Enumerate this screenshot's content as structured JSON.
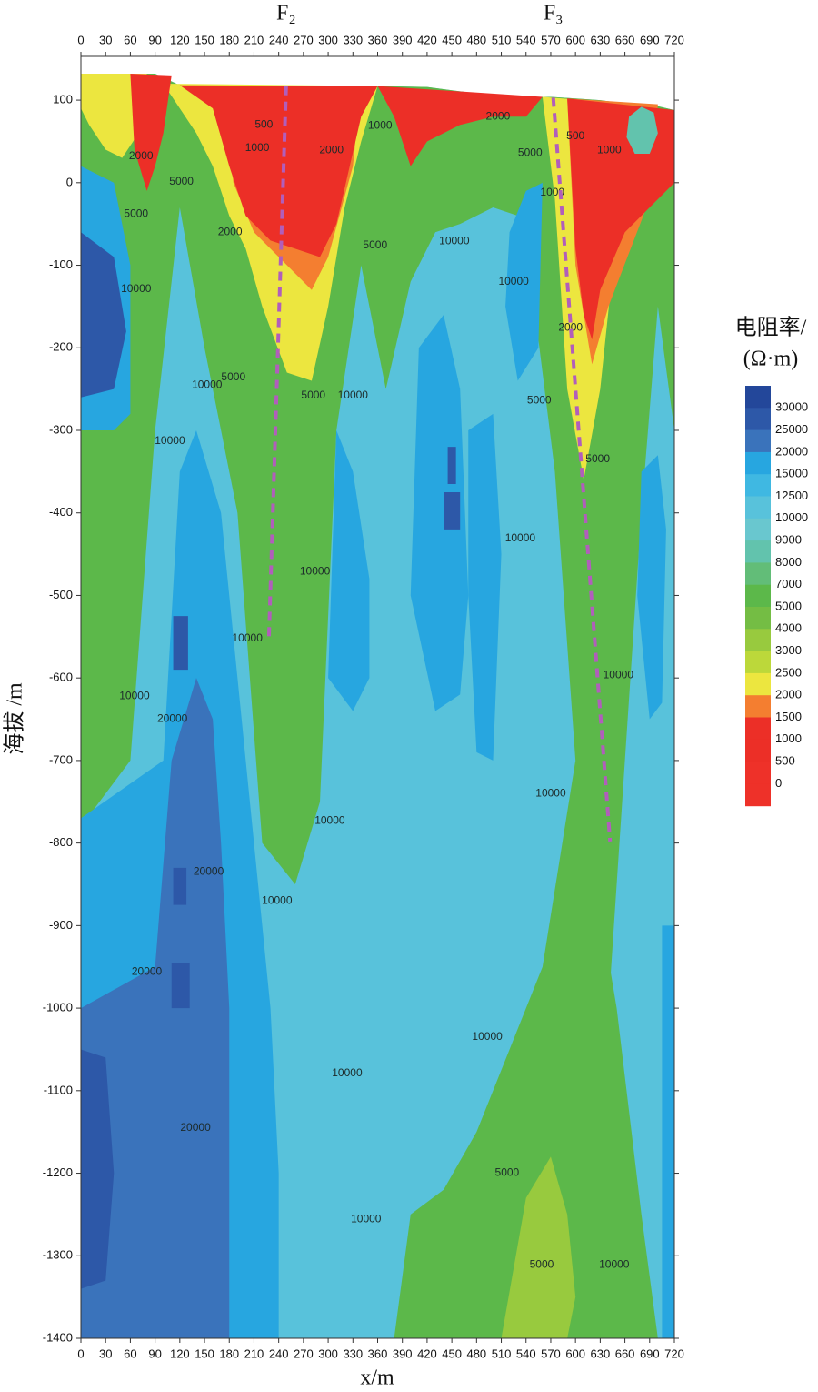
{
  "chart_data": {
    "type": "contour",
    "xlabel": "x/m",
    "ylabel": "海拔 /m",
    "xlim": [
      0,
      720
    ],
    "ylim": [
      -1400,
      153
    ],
    "xticks": [
      0,
      30,
      60,
      90,
      120,
      150,
      180,
      210,
      240,
      270,
      300,
      330,
      360,
      390,
      420,
      450,
      480,
      510,
      540,
      570,
      600,
      630,
      660,
      690,
      720
    ],
    "yticks": [
      100,
      0,
      -100,
      -200,
      -300,
      -400,
      -500,
      -600,
      -700,
      -800,
      -900,
      -1000,
      -1100,
      -1200,
      -1300,
      -1400
    ],
    "colorbar": {
      "title": [
        "电阻率/",
        "(Ω·m)"
      ],
      "levels": [
        30000,
        25000,
        20000,
        15000,
        12500,
        10000,
        9000,
        8000,
        7000,
        5000,
        4000,
        3000,
        2500,
        2000,
        1500,
        1000,
        500,
        0
      ],
      "colors": [
        "#23479a",
        "#2d58a8",
        "#3a73bb",
        "#27a6e0",
        "#3fb8e2",
        "#58c2db",
        "#69c7cf",
        "#62c3ad",
        "#62bd78",
        "#5cb84a",
        "#74bd44",
        "#98ca3e",
        "#bcd83a",
        "#ece63f",
        "#f47e30",
        "#ec2f27",
        "#ec2f27",
        "#ee3129",
        "#ee3129"
      ]
    },
    "regions": [
      {
        "level": 10000,
        "x": [
          0,
          90,
          120,
          180,
          240,
          300,
          360,
          420,
          450,
          480,
          510,
          540,
          570,
          600,
          630,
          660,
          690,
          720,
          720,
          0
        ],
        "y": [
          132,
          132,
          118,
          115,
          115,
          115,
          117,
          116,
          112,
          108,
          104,
          104,
          104,
          102,
          100,
          96,
          95,
          88,
          -1400,
          -1400
        ]
      },
      {
        "level": 5000,
        "x": [
          0,
          90,
          120,
          180,
          240,
          300,
          360,
          420,
          450,
          480,
          510,
          540,
          570,
          600,
          630,
          660,
          690,
          720,
          720,
          700,
          680,
          640,
          620,
          600,
          575,
          550,
          530,
          500,
          460,
          430,
          400,
          370,
          340,
          310,
          290,
          260,
          220,
          190,
          150,
          120,
          90,
          60,
          0
        ],
        "y": [
          132,
          132,
          118,
          115,
          115,
          115,
          117,
          116,
          112,
          108,
          104,
          104,
          104,
          102,
          100,
          96,
          95,
          88,
          -300,
          -150,
          -400,
          -1000,
          -900,
          -700,
          -350,
          -150,
          -40,
          -30,
          -50,
          -60,
          -120,
          -250,
          -100,
          -300,
          -750,
          -850,
          -800,
          -400,
          -200,
          -30,
          -300,
          -700,
          -780
        ]
      },
      {
        "level": 5000,
        "x": [
          380,
          400,
          440,
          480,
          520,
          560,
          600,
          650,
          680,
          700
        ],
        "y": [
          -1400,
          -1250,
          -1220,
          -1150,
          -1050,
          -950,
          -700,
          -1000,
          -1250,
          -1400
        ]
      },
      {
        "level": 3000,
        "x": [
          510,
          540,
          570,
          590,
          600,
          590,
          560,
          520
        ],
        "y": [
          -1400,
          -1230,
          -1180,
          -1250,
          -1350,
          -1400,
          -1400,
          -1400
        ]
      },
      {
        "level": 2000,
        "x": [
          0,
          80,
          70,
          50,
          30,
          10,
          0
        ],
        "y": [
          132,
          132,
          60,
          30,
          40,
          70,
          90
        ]
      },
      {
        "level": 2000,
        "x": [
          100,
          360,
          340,
          320,
          300,
          280,
          250,
          220,
          200,
          180,
          160,
          140
        ],
        "y": [
          120,
          117,
          50,
          -30,
          -150,
          -240,
          -230,
          -150,
          -80,
          -40,
          20,
          60
        ]
      },
      {
        "level": 2000,
        "x": [
          560,
          660,
          650,
          630,
          610,
          590,
          575
        ],
        "y": [
          104,
          96,
          -60,
          -250,
          -360,
          -250,
          -20
        ]
      },
      {
        "level": 1500,
        "x": [
          170,
          340,
          330,
          300,
          280,
          250,
          210,
          185
        ],
        "y": [
          116,
          117,
          20,
          -90,
          -130,
          -100,
          -60,
          0
        ]
      },
      {
        "level": 1500,
        "x": [
          590,
          700,
          690,
          640,
          620,
          600
        ],
        "y": [
          102,
          95,
          -20,
          -150,
          -220,
          -100
        ]
      },
      {
        "level": 1000,
        "x": [
          120,
          360,
          340,
          310,
          290,
          260,
          230,
          200,
          180,
          160
        ],
        "y": [
          118,
          117,
          80,
          -50,
          -90,
          -80,
          -70,
          -40,
          20,
          90
        ]
      },
      {
        "level": 1000,
        "x": [
          60,
          110,
          100,
          90,
          80,
          65
        ],
        "y": [
          132,
          130,
          60,
          20,
          -10,
          40
        ]
      },
      {
        "level": 1000,
        "x": [
          360,
          560,
          540,
          500,
          460,
          420,
          400,
          380
        ],
        "y": [
          117,
          104,
          80,
          80,
          70,
          50,
          20,
          80
        ]
      },
      {
        "level": 1000,
        "x": [
          590,
          720,
          720,
          690,
          660,
          630,
          620,
          610,
          600
        ],
        "y": [
          102,
          88,
          0,
          -30,
          -60,
          -130,
          -190,
          -160,
          -80
        ]
      },
      {
        "level": 8000,
        "x": [
          665,
          680,
          695,
          700,
          690,
          672,
          662
        ],
        "y": [
          80,
          92,
          85,
          60,
          35,
          35,
          55
        ]
      },
      {
        "level": 15000,
        "x": [
          0,
          40,
          60,
          60,
          40,
          0
        ],
        "y": [
          20,
          0,
          -100,
          -280,
          -300,
          -300
        ]
      },
      {
        "level": 25000,
        "x": [
          0,
          40,
          55,
          40,
          0
        ],
        "y": [
          -60,
          -90,
          -180,
          -250,
          -260
        ]
      },
      {
        "level": 15000,
        "x": [
          0,
          100,
          120,
          140,
          170,
          190,
          210,
          230,
          240,
          240,
          0
        ],
        "y": [
          -770,
          -700,
          -350,
          -300,
          -400,
          -600,
          -800,
          -1000,
          -1200,
          -1400,
          -1400
        ]
      },
      {
        "level": 20000,
        "x": [
          0,
          90,
          110,
          140,
          160,
          170,
          180,
          180,
          0
        ],
        "y": [
          -1000,
          -950,
          -700,
          -600,
          -650,
          -800,
          -1000,
          -1400,
          -1400
        ]
      },
      {
        "level": 25000,
        "x": [
          0,
          30,
          40,
          30,
          0
        ],
        "y": [
          -1050,
          -1060,
          -1200,
          -1330,
          -1340
        ]
      },
      {
        "level": 15000,
        "x": [
          310,
          330,
          350,
          350,
          330,
          300
        ],
        "y": [
          -300,
          -350,
          -480,
          -600,
          -640,
          -600
        ]
      },
      {
        "level": 15000,
        "x": [
          410,
          440,
          460,
          470,
          460,
          430,
          400
        ],
        "y": [
          -200,
          -160,
          -250,
          -500,
          -620,
          -640,
          -500
        ]
      },
      {
        "level": 15000,
        "x": [
          470,
          500,
          510,
          500,
          480,
          470
        ],
        "y": [
          -300,
          -280,
          -450,
          -700,
          -690,
          -500
        ]
      },
      {
        "level": 15000,
        "x": [
          520,
          540,
          560,
          555,
          530,
          515
        ],
        "y": [
          -60,
          -10,
          0,
          -200,
          -240,
          -150
        ]
      },
      {
        "level": 15000,
        "x": [
          680,
          700,
          710,
          705,
          690,
          675
        ],
        "y": [
          -350,
          -330,
          -420,
          -630,
          -650,
          -500
        ]
      },
      {
        "level": 15000,
        "x": [
          705,
          720,
          720,
          705
        ],
        "y": [
          -900,
          -900,
          -1400,
          -1400
        ]
      },
      {
        "level": 25000,
        "x": [
          445,
          455,
          455,
          445
        ],
        "y": [
          -320,
          -320,
          -365,
          -365
        ]
      },
      {
        "level": 25000,
        "x": [
          440,
          460,
          460,
          440
        ],
        "y": [
          -375,
          -375,
          -420,
          -420
        ]
      },
      {
        "level": 25000,
        "x": [
          112,
          130,
          130,
          112
        ],
        "y": [
          -525,
          -525,
          -590,
          -590
        ]
      },
      {
        "level": 25000,
        "x": [
          110,
          132,
          132,
          110
        ],
        "y": [
          -945,
          -945,
          -1000,
          -1000
        ]
      },
      {
        "level": 25000,
        "x": [
          112,
          128,
          128,
          112
        ],
        "y": [
          -830,
          -830,
          -875,
          -875
        ]
      }
    ],
    "contour_labels": [
      {
        "value": 500,
        "x": 222,
        "y": 70
      },
      {
        "value": 1000,
        "x": 214,
        "y": 42
      },
      {
        "value": 2000,
        "x": 73,
        "y": 32
      },
      {
        "value": 5000,
        "x": 122,
        "y": 1
      },
      {
        "value": 2000,
        "x": 304,
        "y": 39
      },
      {
        "value": 1000,
        "x": 363,
        "y": 69
      },
      {
        "value": 2000,
        "x": 506,
        "y": 80
      },
      {
        "value": 5000,
        "x": 545,
        "y": 36
      },
      {
        "value": 500,
        "x": 600,
        "y": 56
      },
      {
        "value": 1000,
        "x": 641,
        "y": 39
      },
      {
        "value": 1000,
        "x": 572,
        "y": -12
      },
      {
        "value": 5000,
        "x": 67,
        "y": -38
      },
      {
        "value": 2000,
        "x": 181,
        "y": -60
      },
      {
        "value": 5000,
        "x": 357,
        "y": -76
      },
      {
        "value": 10000,
        "x": 453,
        "y": -71
      },
      {
        "value": 10000,
        "x": 525,
        "y": -120
      },
      {
        "value": 10000,
        "x": 67,
        "y": -129
      },
      {
        "value": 2000,
        "x": 594,
        "y": -176
      },
      {
        "value": 10000,
        "x": 153,
        "y": -245
      },
      {
        "value": 5000,
        "x": 185,
        "y": -236
      },
      {
        "value": 5000,
        "x": 282,
        "y": -258
      },
      {
        "value": 10000,
        "x": 330,
        "y": -258
      },
      {
        "value": 5000,
        "x": 556,
        "y": -264
      },
      {
        "value": 10000,
        "x": 108,
        "y": -313
      },
      {
        "value": 5000,
        "x": 627,
        "y": -335
      },
      {
        "value": 10000,
        "x": 533,
        "y": -431
      },
      {
        "value": 10000,
        "x": 284,
        "y": -471
      },
      {
        "value": 10000,
        "x": 202,
        "y": -552
      },
      {
        "value": 10000,
        "x": 652,
        "y": -597
      },
      {
        "value": 10000,
        "x": 65,
        "y": -622
      },
      {
        "value": 20000,
        "x": 111,
        "y": -650
      },
      {
        "value": 10000,
        "x": 570,
        "y": -740
      },
      {
        "value": 10000,
        "x": 302,
        "y": -773
      },
      {
        "value": 20000,
        "x": 155,
        "y": -835
      },
      {
        "value": 10000,
        "x": 238,
        "y": -870
      },
      {
        "value": 20000,
        "x": 80,
        "y": -956
      },
      {
        "value": 10000,
        "x": 493,
        "y": -1035
      },
      {
        "value": 10000,
        "x": 323,
        "y": -1079
      },
      {
        "value": 20000,
        "x": 139,
        "y": -1145
      },
      {
        "value": 5000,
        "x": 517,
        "y": -1200
      },
      {
        "value": 10000,
        "x": 346,
        "y": -1256
      },
      {
        "value": 5000,
        "x": 559,
        "y": -1311
      },
      {
        "value": 10000,
        "x": 647,
        "y": -1311
      }
    ],
    "faults": [
      {
        "name": "F₂",
        "color": "#b15ebb",
        "x": [
          249,
          228
        ],
        "y": [
          117,
          -556
        ]
      },
      {
        "name": "F₃",
        "color": "#b15ebb",
        "x": [
          573,
          642
        ],
        "y": [
          103,
          -798
        ]
      }
    ]
  }
}
